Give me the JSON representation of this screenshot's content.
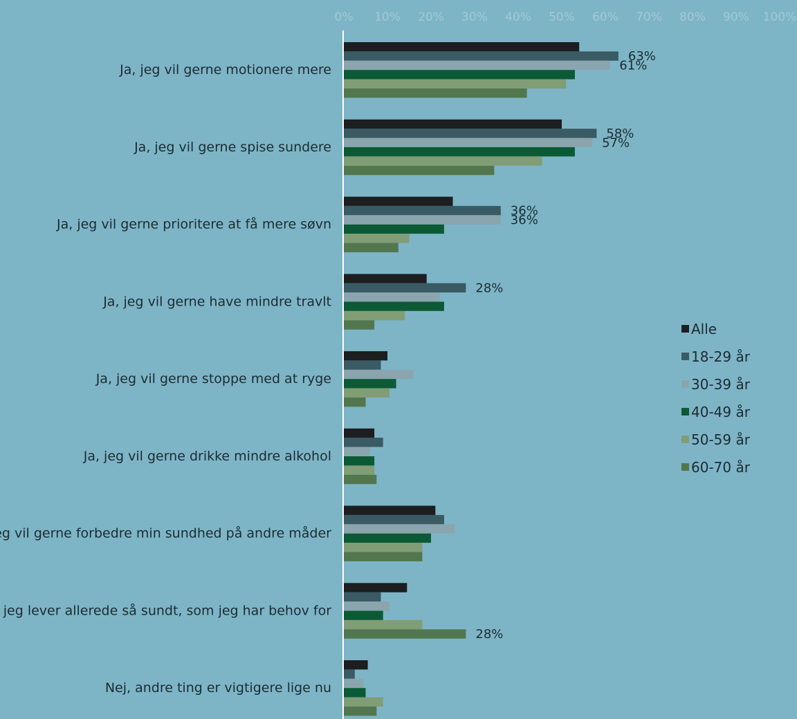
{
  "chart_data": {
    "type": "bar",
    "orientation": "horizontal",
    "title": "",
    "xlabel": "",
    "ylabel": "",
    "xlim": [
      0,
      100
    ],
    "x_ticks": [
      "0%",
      "10%",
      "20%",
      "30%",
      "40%",
      "50%",
      "60%",
      "70%",
      "80%",
      "90%",
      "100%"
    ],
    "grid": false,
    "legend_position": "right",
    "categories": [
      "Ja, jeg vil gerne motionere mere",
      "Ja, jeg vil gerne spise sundere",
      "Ja, jeg vil gerne prioritere at få mere søvn",
      "Ja, jeg vil gerne have mindre travlt",
      "Ja, jeg vil gerne stoppe med at ryge",
      "Ja, jeg vil gerne drikke mindre alkohol",
      "Ja, jeg vil gerne forbedre min sundhed på andre måder",
      "Nej, jeg lever allerede så sundt, som jeg har behov for",
      "Nej, andre ting er vigtigere lige nu"
    ],
    "series": [
      {
        "name": "Alle",
        "color": "#1c1e1f",
        "values": [
          54,
          50,
          25,
          19,
          10,
          7,
          21,
          14.5,
          5.5
        ]
      },
      {
        "name": "18-29 år",
        "color": "#3a5a64",
        "values": [
          63,
          58,
          36,
          28,
          8.5,
          9,
          23,
          8.5,
          2.5
        ]
      },
      {
        "name": "30-39 år",
        "color": "#8aa5ad",
        "values": [
          61,
          57,
          36,
          22,
          16,
          6,
          25.5,
          10.5,
          4.5
        ]
      },
      {
        "name": "40-49 år",
        "color": "#0b5a35",
        "values": [
          53,
          53,
          23,
          23,
          12,
          7,
          20,
          9,
          5
        ]
      },
      {
        "name": "50-59 år",
        "color": "#819d76",
        "values": [
          51,
          45.5,
          15,
          14,
          10.5,
          7,
          18,
          18,
          9
        ]
      },
      {
        "name": "60-70 år",
        "color": "#52764e",
        "values": [
          42,
          34.5,
          12.5,
          7,
          5,
          7.5,
          18,
          28,
          7.5
        ]
      }
    ],
    "data_labels": [
      {
        "category": 0,
        "series": 1,
        "text": "63%"
      },
      {
        "category": 0,
        "series": 2,
        "text": "61%"
      },
      {
        "category": 1,
        "series": 1,
        "text": "58%"
      },
      {
        "category": 1,
        "series": 2,
        "text": "57%"
      },
      {
        "category": 2,
        "series": 1,
        "text": "36%"
      },
      {
        "category": 2,
        "series": 2,
        "text": "36%"
      },
      {
        "category": 3,
        "series": 1,
        "text": "28%"
      },
      {
        "category": 7,
        "series": 5,
        "text": "28%"
      }
    ]
  }
}
